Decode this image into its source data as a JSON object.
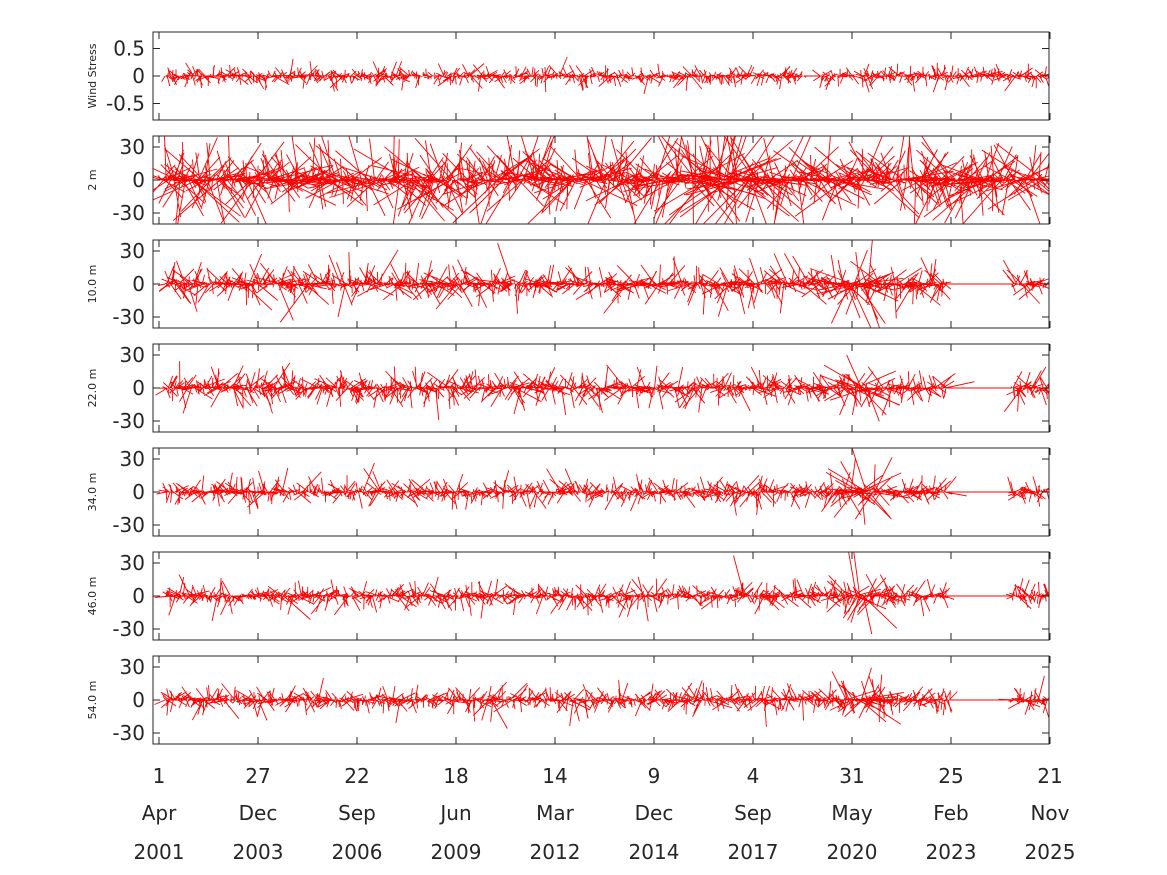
{
  "chart_data": {
    "type": "stick_vector_timeseries",
    "color": "#ff0000",
    "x_axis": {
      "range": [
        "2001-04-01",
        "2025-11-21"
      ],
      "ticks": [
        {
          "day": "1",
          "month": "Apr",
          "year": "2001"
        },
        {
          "day": "27",
          "month": "Dec",
          "year": "2003"
        },
        {
          "day": "22",
          "month": "Sep",
          "year": "2006"
        },
        {
          "day": "18",
          "month": "Jun",
          "year": "2009"
        },
        {
          "day": "14",
          "month": "Mar",
          "year": "2012"
        },
        {
          "day": "9",
          "month": "Dec",
          "year": "2014"
        },
        {
          "day": "4",
          "month": "Sep",
          "year": "2017"
        },
        {
          "day": "31",
          "month": "May",
          "year": "2020"
        },
        {
          "day": "25",
          "month": "Feb",
          "year": "2023"
        },
        {
          "day": "21",
          "month": "Nov",
          "year": "2025"
        }
      ]
    },
    "panels": [
      {
        "ylabel": "Wind Stress",
        "ylim": [
          -0.8,
          0.8
        ],
        "yticks": [
          "0.5",
          "0",
          "-0.5"
        ],
        "ytick_values": [
          0.5,
          0,
          -0.5
        ],
        "typical_amplitude": 0.12,
        "max_amplitude": 0.7,
        "data_segments": [
          [
            "2001-06-01",
            "2019-02-01"
          ],
          [
            "2019-07-15",
            "2020-07-01"
          ],
          [
            "2020-09-01",
            "2025-11-10"
          ]
        ],
        "flat_gaps": [
          [
            "2019-02-01",
            "2019-07-15"
          ]
        ],
        "burst": null
      },
      {
        "ylabel": "2 m",
        "ylim": [
          -40,
          40
        ],
        "yticks": [
          "30",
          "0",
          "-30"
        ],
        "ytick_values": [
          30,
          0,
          -30
        ],
        "typical_amplitude": 25,
        "max_amplitude": 60,
        "data_segments": [
          [
            "2001-04-01",
            "2025-11-21"
          ]
        ],
        "flat_gaps": [],
        "burst": [
          "2015-06-01",
          "2018-01-01"
        ]
      },
      {
        "ylabel": "10.0 m",
        "ylim": [
          -40,
          40
        ],
        "yticks": [
          "30",
          "0",
          "-30"
        ],
        "ytick_values": [
          30,
          0,
          -30
        ],
        "typical_amplitude": 12,
        "max_amplitude": 45,
        "data_segments": [
          [
            "2001-06-01",
            "2023-01-15"
          ],
          [
            "2024-11-01",
            "2025-11-10"
          ]
        ],
        "flat_gaps": [
          [
            "2023-01-15",
            "2024-11-01"
          ]
        ],
        "burst": [
          "2020-02-01",
          "2021-04-01"
        ]
      },
      {
        "ylabel": "22.0 m",
        "ylim": [
          -40,
          40
        ],
        "yticks": [
          "30",
          "0",
          "-30"
        ],
        "ytick_values": [
          30,
          0,
          -30
        ],
        "typical_amplitude": 10,
        "max_amplitude": 45,
        "data_segments": [
          [
            "2001-06-01",
            "2023-01-15"
          ],
          [
            "2024-11-01",
            "2025-11-10"
          ]
        ],
        "flat_gaps": [
          [
            "2023-01-15",
            "2024-11-01"
          ]
        ],
        "burst": [
          "2020-02-01",
          "2021-04-01"
        ]
      },
      {
        "ylabel": "34.0 m",
        "ylim": [
          -40,
          40
        ],
        "yticks": [
          "30",
          "0",
          "-30"
        ],
        "ytick_values": [
          30,
          0,
          -30
        ],
        "typical_amplitude": 8,
        "max_amplitude": 45,
        "data_segments": [
          [
            "2001-06-01",
            "2023-01-15"
          ],
          [
            "2024-11-01",
            "2025-11-10"
          ]
        ],
        "flat_gaps": [
          [
            "2023-01-15",
            "2024-11-01"
          ]
        ],
        "burst": [
          "2020-02-01",
          "2021-04-01"
        ]
      },
      {
        "ylabel": "46.0 m",
        "ylim": [
          -40,
          40
        ],
        "yticks": [
          "30",
          "0",
          "-30"
        ],
        "ytick_values": [
          30,
          0,
          -30
        ],
        "typical_amplitude": 8,
        "max_amplitude": 45,
        "data_segments": [
          [
            "2001-06-01",
            "2023-01-15"
          ],
          [
            "2024-11-01",
            "2025-11-10"
          ]
        ],
        "flat_gaps": [
          [
            "2023-01-15",
            "2024-11-01"
          ]
        ],
        "burst": [
          "2020-02-01",
          "2021-04-01"
        ]
      },
      {
        "ylabel": "54.0 m",
        "ylim": [
          -40,
          40
        ],
        "yticks": [
          "30",
          "0",
          "-30"
        ],
        "ytick_values": [
          30,
          0,
          -30
        ],
        "typical_amplitude": 8,
        "max_amplitude": 45,
        "data_segments": [
          [
            "2001-06-01",
            "2023-02-15"
          ],
          [
            "2024-11-01",
            "2025-11-10"
          ]
        ],
        "flat_gaps": [
          [
            "2023-02-15",
            "2024-11-01"
          ]
        ],
        "burst": [
          "2020-02-01",
          "2021-04-01"
        ]
      }
    ]
  }
}
